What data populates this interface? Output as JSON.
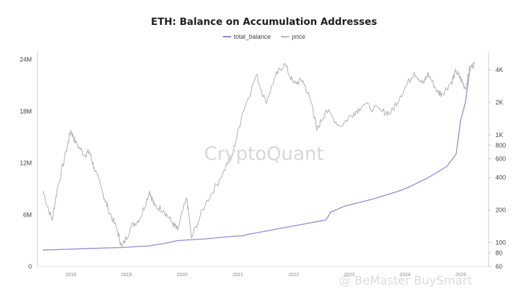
{
  "chart_data": {
    "type": "line",
    "title": "ETH: Balance on Accumulation Addresses",
    "legend": {
      "placement": "top-center",
      "items": [
        "total_balance",
        "price"
      ]
    },
    "x_ticks": [
      "2018",
      "2019",
      "2020",
      "2021",
      "2022",
      "2023",
      "2024",
      "2025"
    ],
    "y_left": {
      "ticks": [
        "24M",
        "18M",
        "12M",
        "6M",
        "0"
      ],
      "range": [
        0,
        24000000
      ]
    },
    "y_right": {
      "scale": "log",
      "ticks": [
        "4K",
        "2K",
        "1K",
        "800",
        "600",
        "400",
        "200",
        "100",
        "80",
        "60"
      ],
      "range": [
        60,
        5000
      ]
    },
    "grid": "off",
    "series": [
      {
        "name": "total_balance",
        "axis": "left",
        "color": "#8f88d8",
        "points": [
          [
            "2017-07",
            1900000
          ],
          [
            "2017-12",
            2000000
          ],
          [
            "2018-06",
            2100000
          ],
          [
            "2018-12",
            2200000
          ],
          [
            "2019-06",
            2400000
          ],
          [
            "2019-09",
            2650000
          ],
          [
            "2019-12",
            3000000
          ],
          [
            "2020-06",
            3200000
          ],
          [
            "2020-12",
            3500000
          ],
          [
            "2021-02",
            3550000
          ],
          [
            "2021-03",
            3700000
          ],
          [
            "2021-09",
            4300000
          ],
          [
            "2022-03",
            4900000
          ],
          [
            "2022-06",
            5200000
          ],
          [
            "2022-08",
            5400000
          ],
          [
            "2022-09",
            6300000
          ],
          [
            "2022-12",
            7000000
          ],
          [
            "2023-06",
            7800000
          ],
          [
            "2023-12",
            8800000
          ],
          [
            "2024-03",
            9500000
          ],
          [
            "2024-06",
            10300000
          ],
          [
            "2024-10",
            11600000
          ],
          [
            "2024-12",
            13000000
          ],
          [
            "2025-01",
            17000000
          ],
          [
            "2025-02",
            19000000
          ],
          [
            "2025-03",
            23000000
          ]
        ]
      },
      {
        "name": "price",
        "axis": "right",
        "color": "#b5b5b5",
        "points": [
          [
            "2017-07",
            300
          ],
          [
            "2017-09",
            160
          ],
          [
            "2017-10",
            300
          ],
          [
            "2017-12",
            700
          ],
          [
            "2018-01",
            1100
          ],
          [
            "2018-02",
            850
          ],
          [
            "2018-04",
            650
          ],
          [
            "2018-05",
            700
          ],
          [
            "2018-06",
            500
          ],
          [
            "2018-08",
            280
          ],
          [
            "2018-09",
            210
          ],
          [
            "2018-11",
            130
          ],
          [
            "2018-12",
            90
          ],
          [
            "2019-02",
            140
          ],
          [
            "2019-04",
            170
          ],
          [
            "2019-06",
            300
          ],
          [
            "2019-07",
            220
          ],
          [
            "2019-09",
            200
          ],
          [
            "2019-11",
            150
          ],
          [
            "2019-12",
            130
          ],
          [
            "2020-02",
            260
          ],
          [
            "2020-03",
            110
          ],
          [
            "2020-06",
            230
          ],
          [
            "2020-09",
            380
          ],
          [
            "2020-12",
            700
          ],
          [
            "2021-02",
            1600
          ],
          [
            "2021-05",
            3600
          ],
          [
            "2021-07",
            2000
          ],
          [
            "2021-09",
            3400
          ],
          [
            "2021-11",
            4600
          ],
          [
            "2022-01",
            3000
          ],
          [
            "2022-03",
            3200
          ],
          [
            "2022-05",
            1900
          ],
          [
            "2022-06",
            1100
          ],
          [
            "2022-08",
            1700
          ],
          [
            "2022-11",
            1200
          ],
          [
            "2023-02",
            1600
          ],
          [
            "2023-04",
            1900
          ],
          [
            "2023-08",
            1650
          ],
          [
            "2023-10",
            1600
          ],
          [
            "2023-12",
            2300
          ],
          [
            "2024-03",
            3800
          ],
          [
            "2024-05",
            3000
          ],
          [
            "2024-06",
            3700
          ],
          [
            "2024-08",
            2500
          ],
          [
            "2024-09",
            2400
          ],
          [
            "2024-11",
            3100
          ],
          [
            "2024-12",
            3900
          ],
          [
            "2025-01",
            3300
          ],
          [
            "2025-02",
            2700
          ],
          [
            "2025-03",
            4200
          ],
          [
            "2025-04",
            4600
          ]
        ]
      }
    ],
    "watermark": "CryptoQuant"
  },
  "credit": "@ BeMaster BuySmart"
}
